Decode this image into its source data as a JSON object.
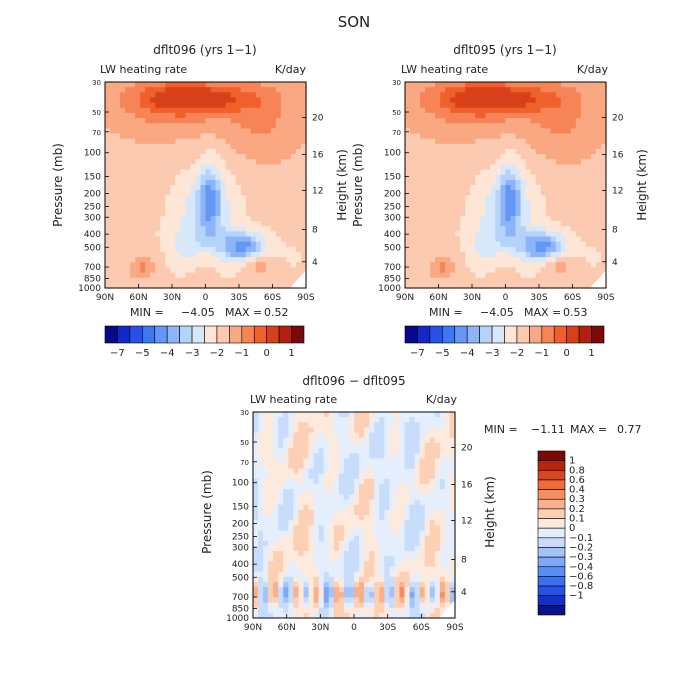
{
  "page": {
    "title": "SON"
  },
  "colors": {
    "top_palette": [
      "#08088c",
      "#1428c8",
      "#2850e6",
      "#3c78f0",
      "#6496f5",
      "#8cb4f8",
      "#b4d2fa",
      "#d8e8fb",
      "#fde6d6",
      "#fccab0",
      "#f9a882",
      "#f68456",
      "#f0602a",
      "#d8401a",
      "#b42010",
      "#7a0a0a"
    ],
    "diff_palette": [
      "#08148c",
      "#1430c8",
      "#2850e6",
      "#3c6ef0",
      "#5a8cf5",
      "#7ea8f7",
      "#a2c4f9",
      "#c8dcfb",
      "#e4eefc",
      "#fdeadc",
      "#fcd0b4",
      "#fab08c",
      "#f78e62",
      "#f06a3a",
      "#d84620",
      "#b42410",
      "#7a0808"
    ]
  },
  "chart_data": [
    {
      "type": "heatmap",
      "title": "dflt096 (yrs 1−1)",
      "subtitle_left": "LW heating rate",
      "subtitle_right": "K/day",
      "ylabel": "Pressure (mb)",
      "y2label": "Height (km)",
      "x_ticks": [
        "90N",
        "60N",
        "30N",
        "0",
        "30S",
        "60S",
        "90S"
      ],
      "y_ticks": [
        "30",
        "50",
        "70",
        "100",
        "150",
        "200",
        "250",
        "300",
        "400",
        "500",
        "700",
        "850",
        "1000"
      ],
      "y2_ticks": [
        "20",
        "16",
        "12",
        "8",
        "4"
      ],
      "ylim": [
        1000,
        30
      ],
      "yscale": "log",
      "stats": {
        "min_label": "MIN =",
        "min": "−4.05",
        "max_label": "MAX =",
        "max": "0.52"
      },
      "colorbar": {
        "orientation": "horizontal",
        "labels": [
          "−7",
          "−5",
          "−4",
          "−3",
          "−2",
          "−1",
          "0",
          "1"
        ]
      }
    },
    {
      "type": "heatmap",
      "title": "dflt095 (yrs 1−1)",
      "subtitle_left": "LW heating rate",
      "subtitle_right": "K/day",
      "ylabel": "Pressure (mb)",
      "y2label": "Height (km)",
      "x_ticks": [
        "90N",
        "60N",
        "30N",
        "0",
        "30S",
        "60S",
        "90S"
      ],
      "y_ticks": [
        "30",
        "50",
        "70",
        "100",
        "150",
        "200",
        "250",
        "300",
        "400",
        "500",
        "700",
        "850",
        "1000"
      ],
      "y2_ticks": [
        "20",
        "16",
        "12",
        "8",
        "4"
      ],
      "ylim": [
        1000,
        30
      ],
      "yscale": "log",
      "stats": {
        "min_label": "MIN =",
        "min": "−4.05",
        "max_label": "MAX =",
        "max": "0.53"
      },
      "colorbar": {
        "orientation": "horizontal",
        "labels": [
          "−7",
          "−5",
          "−4",
          "−3",
          "−2",
          "−1",
          "0",
          "1"
        ]
      }
    },
    {
      "type": "heatmap",
      "title": "dflt096 − dflt095",
      "subtitle_left": "LW heating rate",
      "subtitle_right": "K/day",
      "ylabel": "Pressure (mb)",
      "y2label": "Height (km)",
      "x_ticks": [
        "90N",
        "60N",
        "30N",
        "0",
        "30S",
        "60S",
        "90S"
      ],
      "y_ticks": [
        "30",
        "50",
        "70",
        "100",
        "150",
        "200",
        "250",
        "300",
        "400",
        "500",
        "700",
        "850",
        "1000"
      ],
      "y2_ticks": [
        "20",
        "16",
        "12",
        "8",
        "4"
      ],
      "ylim": [
        1000,
        30
      ],
      "yscale": "log",
      "stats": {
        "min_label": "MIN =",
        "min": "−1.11",
        "max_label": "MAX =",
        "max": "0.77"
      },
      "colorbar": {
        "orientation": "vertical",
        "labels": [
          "1",
          "0.8",
          "0.6",
          "0.4",
          "0.3",
          "0.2",
          "0.1",
          "0",
          "−0.1",
          "−0.2",
          "−0.3",
          "−0.4",
          "−0.6",
          "−0.8",
          "−1"
        ]
      }
    }
  ]
}
